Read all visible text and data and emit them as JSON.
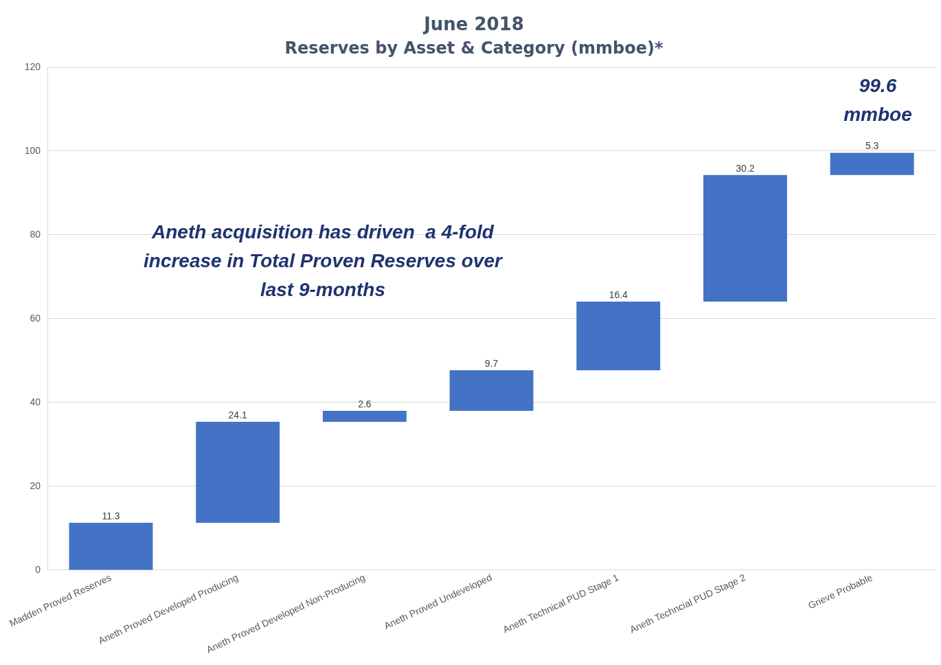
{
  "chart_data": {
    "type": "bar",
    "title": "June 2018",
    "subtitle": "Reserves by Asset & Category (mmboe)*",
    "categories": [
      "Madden Proved Reserves",
      "Aneth Proved Developed Producing",
      "Aneth Proved Developed Non-Producing",
      "Aneth Proved Undeveloped",
      "Aneth Technical PUD Stage 1",
      "Aneth Techncial PUD Stage 2",
      "Grieve Probable"
    ],
    "values": [
      11.3,
      24.1,
      2.6,
      9.7,
      16.4,
      30.2,
      5.3
    ],
    "base": [
      0,
      11.3,
      35.4,
      38.0,
      47.7,
      64.1,
      94.3
    ],
    "color": "#4472c4",
    "ylim": [
      0,
      120
    ],
    "yticks": [
      0,
      20,
      40,
      60,
      80,
      100,
      120
    ],
    "grid": "y",
    "data_labels": true,
    "legend": false,
    "annotations": [
      "Aneth acquisition has driven  a 4-fold increase in Total Proven Reserves over last 9-months",
      "99.6 mmboe"
    ]
  }
}
